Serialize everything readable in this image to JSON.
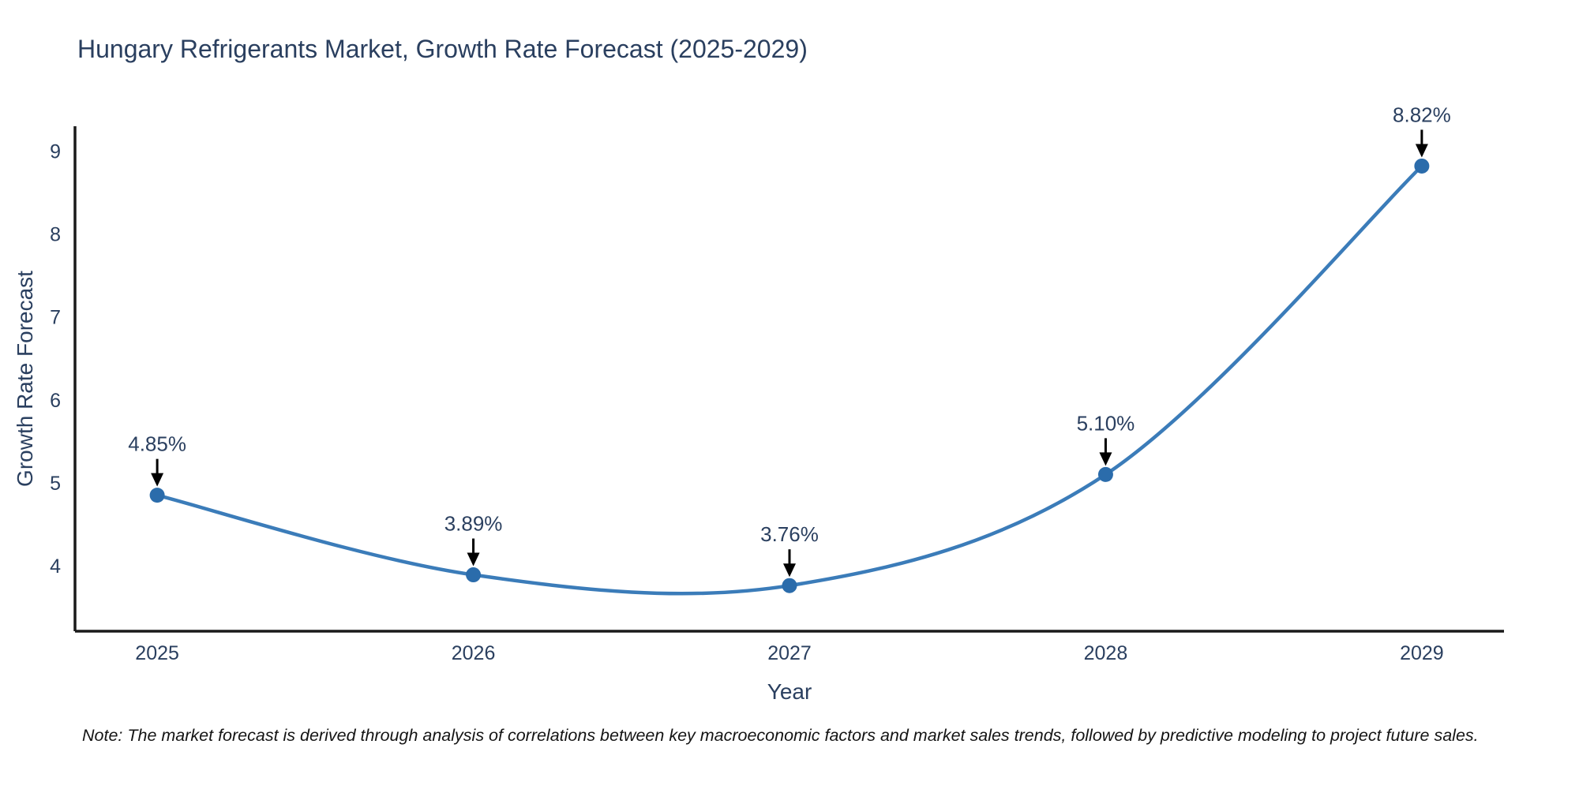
{
  "note": "Note: The market forecast is derived through analysis of correlations between key macroeconomic factors and market sales trends, followed by predictive modeling to project future sales.",
  "chart_data": {
    "type": "line",
    "title": "Hungary Refrigerants Market, Growth Rate Forecast (2025-2029)",
    "xlabel": "Year",
    "ylabel": "Growth Rate Forecast",
    "x": [
      2025,
      2026,
      2027,
      2028,
      2029
    ],
    "values": [
      4.85,
      3.89,
      3.76,
      5.1,
      8.82
    ],
    "point_labels": [
      "4.85%",
      "3.89%",
      "3.76%",
      "5.10%",
      "8.82%"
    ],
    "yticks": [
      4,
      5,
      6,
      7,
      8,
      9
    ],
    "xlim": [
      2024.74,
      2029.26
    ],
    "ylim": [
      3.21,
      9.3
    ],
    "grid": false,
    "legend": "none",
    "line_shape": "spline",
    "marker_symbol": "circle",
    "annotation_style": "down-arrow",
    "colors": {
      "line": "#3b7cb9",
      "marker": "#2b6cab",
      "text": "#2a3f5f",
      "axis": "#1a1a1a",
      "arrow": "#000000",
      "background": "#ffffff"
    }
  }
}
